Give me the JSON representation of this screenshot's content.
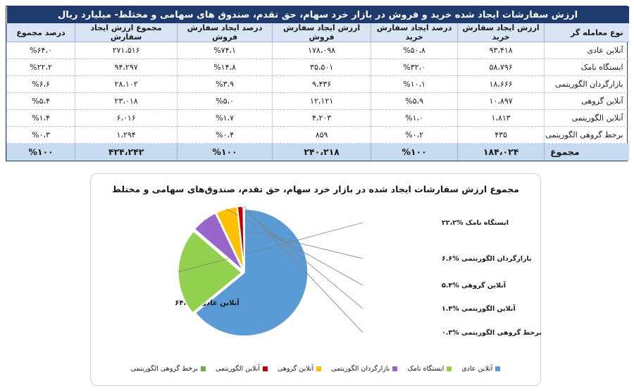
{
  "table": {
    "title": "ارزش سفارشات ایجاد شده خرید و فروش در بازار خرد سهام، حق تقدم، صندوق های سهامی و مختلط- میلیارد ریال",
    "headers": [
      "نوع معامله گر",
      "ارزش ایجاد سفارش خرید",
      "درصد ایجاد سفارش خرید",
      "ارزش ایجاد سفارش فروش",
      "درصد ایجاد سفارش فروش",
      "مجموع ارزش ایجاد سفارش",
      "درصد مجموع"
    ],
    "rows": [
      {
        "type": "آنلاین عادی",
        "buy_value": "۹۳،۴۱۸",
        "buy_pct": "%۵۰،۸",
        "sell_value": "۱۷۸،۰۹۸",
        "sell_pct": "%۷۴،۱",
        "total_value": "۲۷۱،۵۱۶",
        "total_pct": "%۶۴،۰"
      },
      {
        "type": "ایستگاه نامک",
        "buy_value": "۵۸،۷۹۶",
        "buy_pct": "%۳۲،۰",
        "sell_value": "۳۵،۵۰۱",
        "sell_pct": "%۱۴،۸",
        "total_value": "۹۴،۲۹۷",
        "total_pct": "%۲۲،۲"
      },
      {
        "type": "بازارگردان الگوریتمی",
        "buy_value": "۱۸،۶۶۶",
        "buy_pct": "%۱۰،۱",
        "sell_value": "۹،۴۳۶",
        "sell_pct": "%۳،۹",
        "total_value": "۲۸،۱۰۲",
        "total_pct": "%۶،۶"
      },
      {
        "type": "آنلاین گروهی",
        "buy_value": "۱۰،۸۹۷",
        "buy_pct": "%۵،۹",
        "sell_value": "۱۲،۱۲۱",
        "sell_pct": "%۵،۰",
        "total_value": "۲۳،۰۱۸",
        "total_pct": "%۵،۴"
      },
      {
        "type": "آنلاین الگوریتمی",
        "buy_value": "۱،۸۱۳",
        "buy_pct": "%۱،۰",
        "sell_value": "۴،۲۰۳",
        "sell_pct": "%۱،۷",
        "total_value": "۶،۰۱۶",
        "total_pct": "%۱،۴"
      },
      {
        "type": "برخط گروهی الگوریتمی",
        "buy_value": "۴۳۵",
        "buy_pct": "%۰،۲",
        "sell_value": "۸۵۹",
        "sell_pct": "%۰،۴",
        "total_value": "۱،۲۹۴",
        "total_pct": "%۰،۳"
      }
    ],
    "total": {
      "type": "مجموع",
      "buy_value": "۱۸۴،۰۲۴",
      "buy_pct": "%۱۰۰",
      "sell_value": "۲۴۰،۲۱۸",
      "sell_pct": "%۱۰۰",
      "total_value": "۴۲۴،۲۴۲",
      "total_pct": "%۱۰۰"
    }
  },
  "chart_data": {
    "type": "pie",
    "title": "مجموع ارزش سفارشات ایجاد شده در بازار خرد سهام، حق تقدم، صندوق‌های سهامی و مختلط",
    "categories": [
      "آنلاین عادی",
      "ایستگاه نامک",
      "بازارگردان الگوریتمی",
      "آنلاین گروهی",
      "آنلاین الگوریتمی",
      "برخط گروهی الگوریتمی"
    ],
    "values": [
      64.0,
      22.2,
      6.6,
      5.4,
      1.4,
      0.3
    ],
    "colors": [
      "#5b9bd5",
      "#92d050",
      "#9966cc",
      "#ffc000",
      "#c00000",
      "#70ad47"
    ],
    "data_labels": [
      "آنلاین عادی %۶۴،۰",
      "ایستگاه نامک %۲۲،۲",
      "بازارگردان الگوریتمی %۶.۶",
      "آنلاین گروهی %۵.۴",
      "آنلاین الگوریتمی %۱.۴",
      "برخط گروهی الگوریتمی %۰.۳"
    ],
    "legend_position": "bottom"
  }
}
